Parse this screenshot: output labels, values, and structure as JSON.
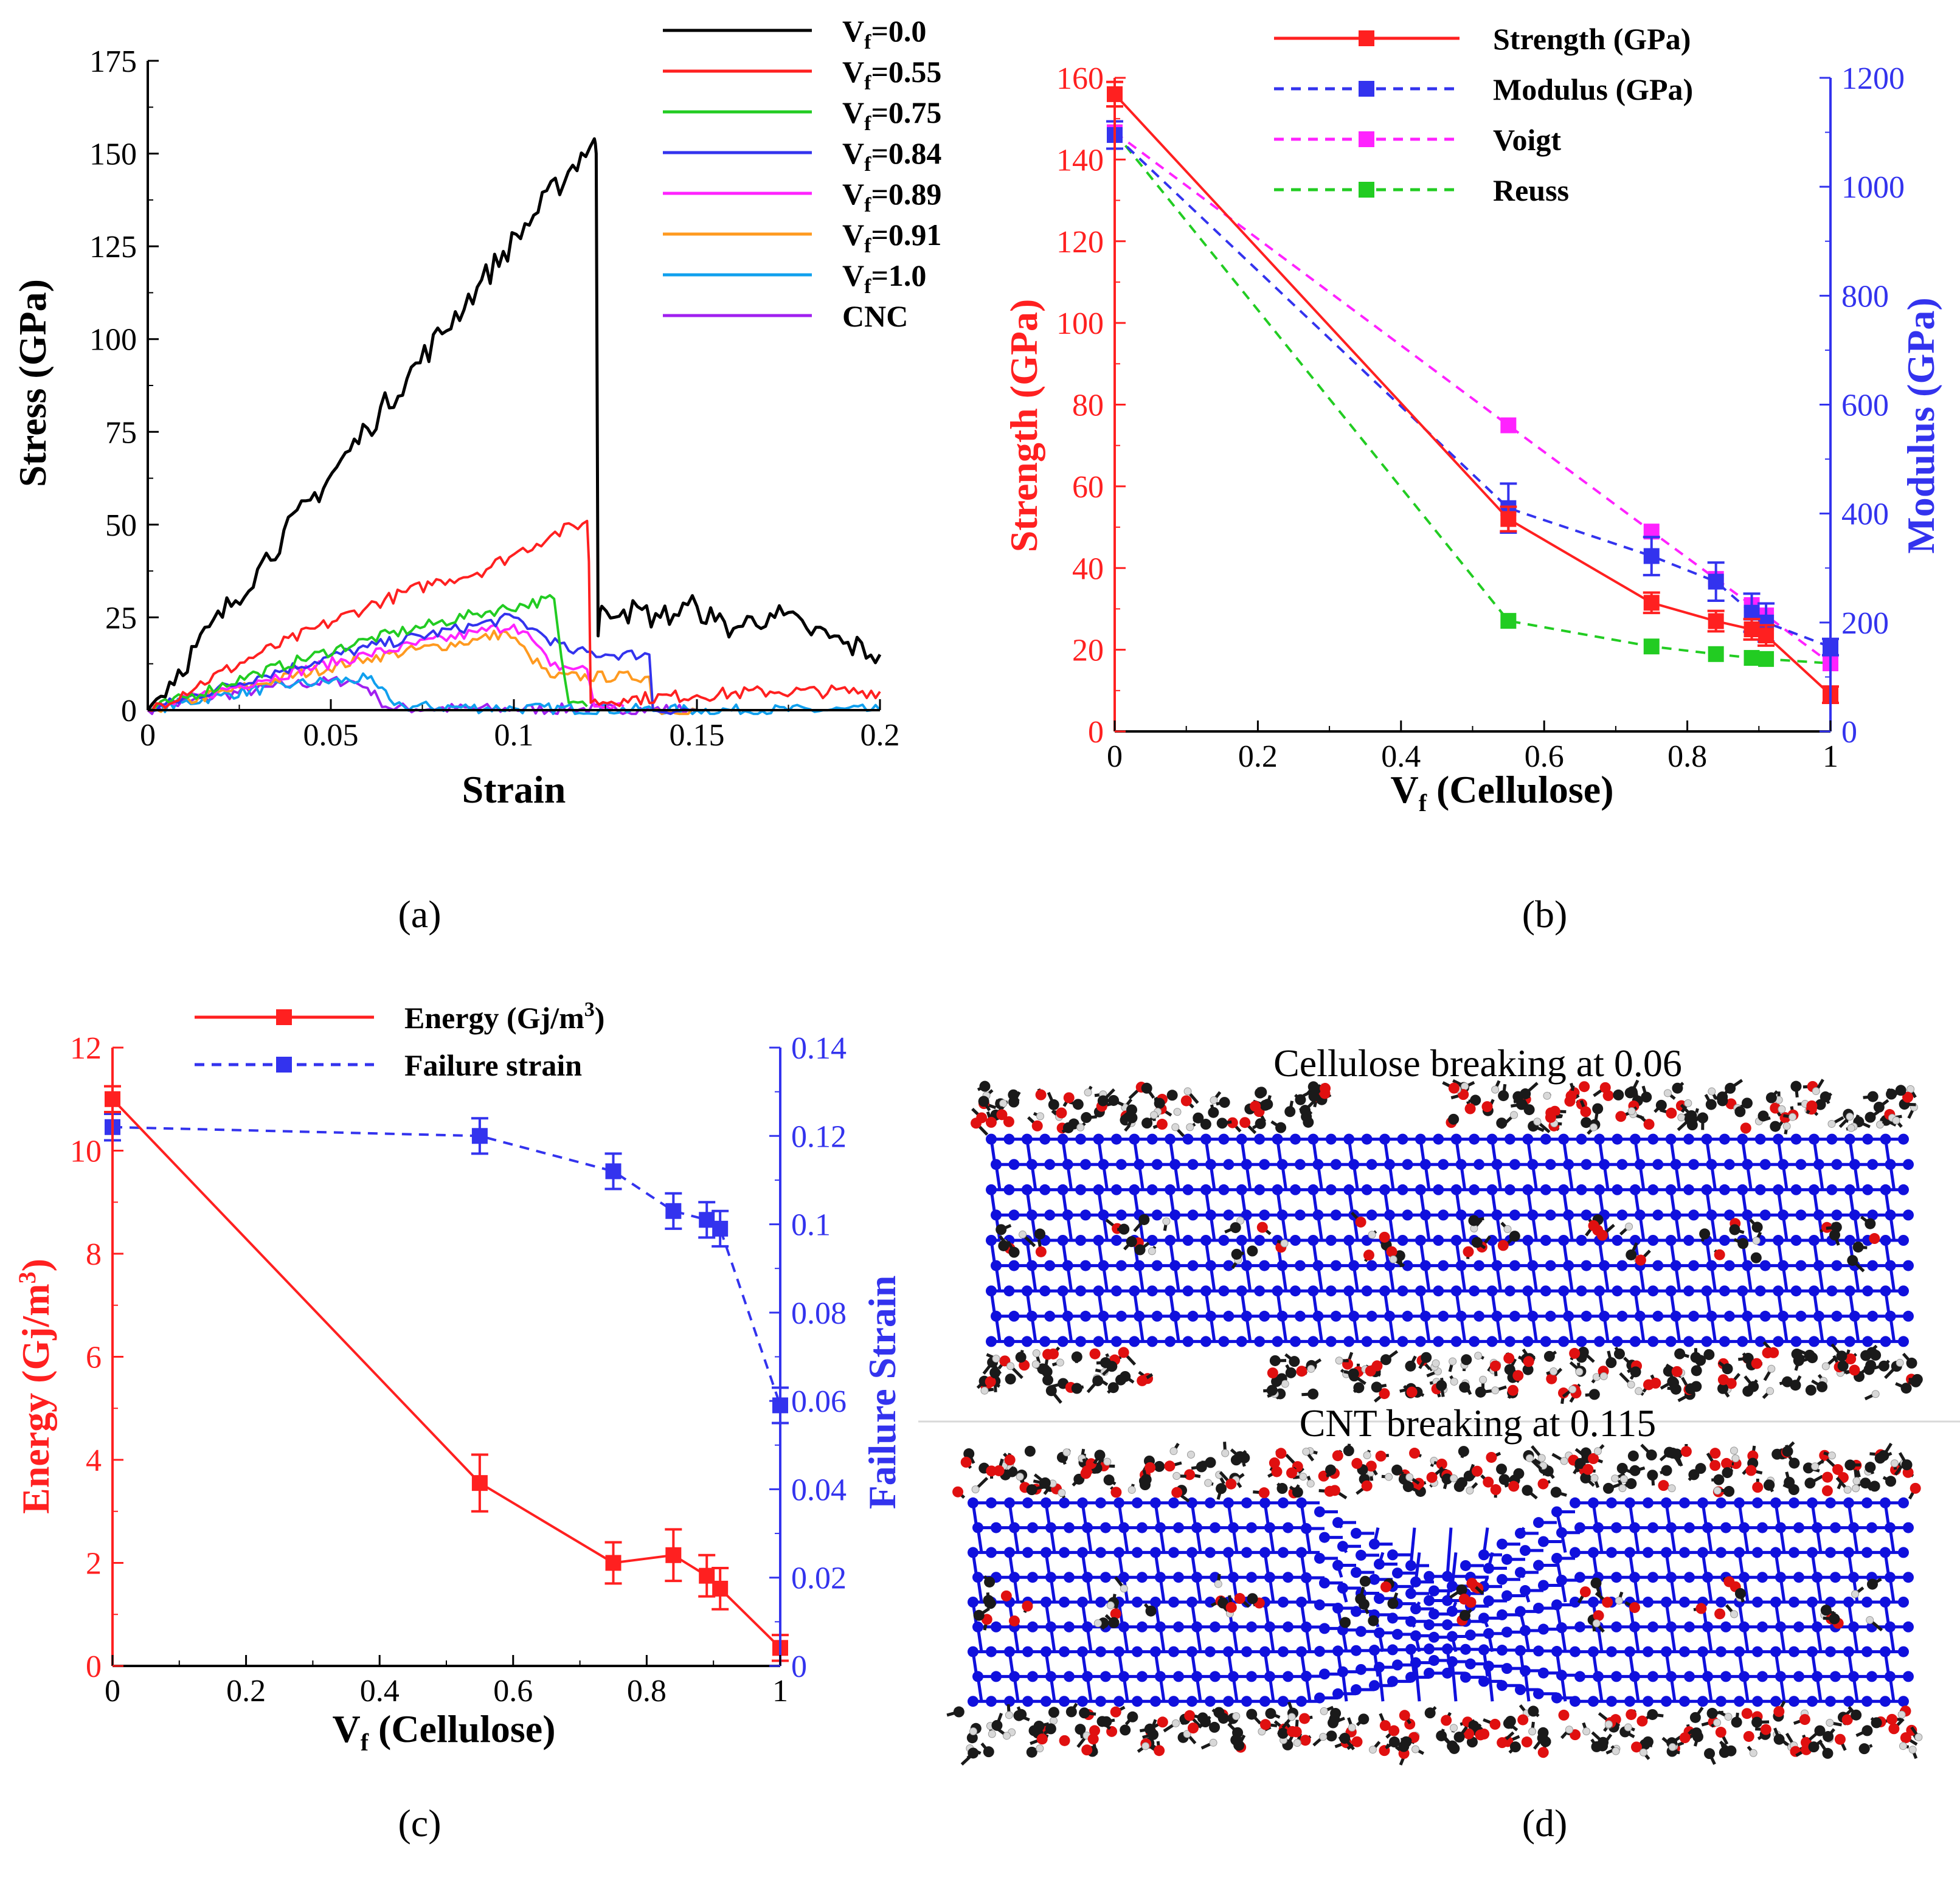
{
  "colors": {
    "black": "#000000",
    "red": "#ff2020",
    "green": "#22cc22",
    "blue": "#3333ee",
    "magenta": "#ff22ff",
    "orange": "#ff9a20",
    "cyan": "#10a0ee",
    "purple": "#a020f0",
    "carbon": "#1a1a1a",
    "oxygen": "#e01010",
    "hydrogen": "#d8d8d8",
    "cnt": "#1010dd",
    "divider": "#d8d8d8"
  },
  "captions": {
    "a": "(a)",
    "b": "(b)",
    "c": "(c)",
    "d": "(d)"
  },
  "chart_data": [
    {
      "id": "a",
      "type": "line",
      "title": "",
      "xlabel": "Strain",
      "ylabel": "Stress (GPa)",
      "xlim": [
        0,
        0.2
      ],
      "ylim": [
        0,
        175
      ],
      "xticks": [
        "0",
        "0.05",
        "0.1",
        "0.15",
        "0.2"
      ],
      "yticks": [
        "0",
        "25",
        "50",
        "75",
        "100",
        "125",
        "150",
        "175"
      ],
      "legend_position": "top-right",
      "series": [
        {
          "name": "Vf=0.0",
          "sub": "f",
          "pre": "V",
          "post": "=0.0",
          "color": "#000000",
          "x": [
            0,
            0.03,
            0.06,
            0.09,
            0.122,
            0.1225,
            0.123,
            0.124,
            0.13,
            0.14,
            0.15,
            0.155,
            0.16,
            0.17,
            0.18,
            0.19,
            0.2
          ],
          "y": [
            0,
            38,
            76,
            114,
            154,
            150,
            20,
            28,
            27,
            25,
            28,
            24,
            22,
            26,
            22,
            18,
            15
          ]
        },
        {
          "name": "Vf=0.55",
          "sub": "f",
          "pre": "V",
          "post": "=0.55",
          "color": "#ff2020",
          "x": [
            0,
            0.03,
            0.06,
            0.08,
            0.09,
            0.1,
            0.11,
            0.12,
            0.1205,
            0.121,
            0.13,
            0.15,
            0.17,
            0.2
          ],
          "y": [
            0,
            15,
            28,
            35,
            37,
            42,
            47,
            51,
            40,
            2,
            3,
            4,
            5,
            5
          ]
        },
        {
          "name": "Vf=0.75",
          "sub": "f",
          "pre": "V",
          "post": "=0.75",
          "color": "#22cc22",
          "x": [
            0,
            0.03,
            0.06,
            0.09,
            0.111,
            0.113,
            0.115,
            0.12
          ],
          "y": [
            0,
            10,
            19,
            26,
            30,
            14,
            2,
            1
          ]
        },
        {
          "name": "Vf=0.84",
          "sub": "f",
          "pre": "V",
          "post": "=0.84",
          "color": "#3333ee",
          "x": [
            0,
            0.03,
            0.06,
            0.09,
            0.1,
            0.105,
            0.115,
            0.125,
            0.137,
            0.138,
            0.15
          ],
          "y": [
            0,
            9,
            17,
            23,
            25,
            22,
            16,
            15,
            15,
            0,
            0
          ]
        },
        {
          "name": "Vf=0.89",
          "sub": "f",
          "pre": "V",
          "post": "=0.89",
          "color": "#ff22ff",
          "x": [
            0,
            0.03,
            0.06,
            0.09,
            0.1,
            0.105,
            0.11,
            0.12,
            0.122,
            0.13
          ],
          "y": [
            0,
            8,
            15,
            21,
            23,
            19,
            12,
            11,
            1,
            1
          ]
        },
        {
          "name": "Vf=0.91",
          "sub": "f",
          "pre": "V",
          "post": "=0.91",
          "color": "#ff9a20",
          "x": [
            0,
            0.03,
            0.06,
            0.09,
            0.098,
            0.104,
            0.11,
            0.137,
            0.138,
            0.15
          ],
          "y": [
            0,
            7,
            14,
            19,
            21,
            15,
            9,
            9,
            0,
            0
          ]
        },
        {
          "name": "Vf=1.0",
          "sub": "f",
          "pre": "V",
          "post": "=1.0",
          "color": "#10a0ee",
          "x": [
            0,
            0.02,
            0.04,
            0.06,
            0.063,
            0.066,
            0.07,
            0.1,
            0.15,
            0.2
          ],
          "y": [
            0,
            4,
            7,
            8.5,
            6,
            3,
            1,
            0.5,
            0,
            0
          ]
        },
        {
          "name": "CNC",
          "sub": "",
          "pre": "CNC",
          "post": "",
          "color": "#a020f0",
          "x": [
            0,
            0.02,
            0.04,
            0.055,
            0.06,
            0.063,
            0.066,
            0.1,
            0.15
          ],
          "y": [
            0,
            4,
            7,
            8,
            6,
            3,
            0.5,
            0.3,
            0.2
          ]
        }
      ]
    },
    {
      "id": "b",
      "type": "line",
      "xlabel_pre": "V",
      "xlabel_sub": "f",
      "xlabel_post": " (Cellulose)",
      "ylabel": "Strength (GPa)",
      "y2label": "Modulus (GPa)",
      "xlim": [
        0,
        1
      ],
      "ylim": [
        0,
        160
      ],
      "y2lim": [
        0,
        1200
      ],
      "xticks": [
        "0",
        "0.2",
        "0.4",
        "0.6",
        "0.8",
        "1"
      ],
      "yticks": [
        "0",
        "20",
        "40",
        "60",
        "80",
        "100",
        "120",
        "140",
        "160"
      ],
      "y2ticks": [
        "0",
        "200",
        "400",
        "600",
        "800",
        "1000",
        "1200"
      ],
      "legend_position": "top-right",
      "series": [
        {
          "name": "Strength (GPa)",
          "axis": "left",
          "color": "#ff2020",
          "dash": "",
          "x": [
            0,
            0.55,
            0.75,
            0.84,
            0.89,
            0.91,
            1.0
          ],
          "y": [
            156,
            52,
            31.5,
            27,
            25,
            23.5,
            9
          ],
          "err": [
            3,
            3,
            2.5,
            2.5,
            2.5,
            2.5,
            2
          ]
        },
        {
          "name": "Modulus (GPa)",
          "axis": "right",
          "color": "#3333ee",
          "dash": "16,12",
          "x": [
            0,
            0.55,
            0.75,
            0.84,
            0.89,
            0.91,
            1.0
          ],
          "y": [
            1095,
            410,
            322,
            275,
            218,
            200,
            155
          ],
          "err": [
            25,
            45,
            35,
            35,
            35,
            35,
            15
          ]
        },
        {
          "name": "Voigt",
          "axis": "right",
          "color": "#ff22ff",
          "dash": "16,12",
          "x": [
            0,
            0.55,
            0.75,
            0.84,
            0.89,
            0.91,
            1.0
          ],
          "y": [
            1100,
            562,
            367,
            280,
            232,
            213,
            125
          ],
          "err": []
        },
        {
          "name": "Reuss",
          "axis": "right",
          "color": "#22cc22",
          "dash": "16,12",
          "x": [
            0,
            0.55,
            0.75,
            0.84,
            0.89,
            0.91,
            1.0
          ],
          "y": [
            1100,
            203,
            156,
            142,
            135,
            133,
            125
          ],
          "err": []
        }
      ]
    },
    {
      "id": "c",
      "type": "line",
      "xlabel_pre": "V",
      "xlabel_sub": "f",
      "xlabel_post": " (Cellulose)",
      "ylabel_pre": "Energy (Gj/m",
      "ylabel_sup": "3",
      "ylabel_post": ")",
      "y2label": "Failure Strain",
      "xlim": [
        0,
        1
      ],
      "ylim": [
        0,
        12
      ],
      "y2lim": [
        0,
        0.14
      ],
      "xticks": [
        "0",
        "0.2",
        "0.4",
        "0.6",
        "0.8",
        "1"
      ],
      "yticks": [
        "0",
        "2",
        "4",
        "6",
        "8",
        "10",
        "12"
      ],
      "y2ticks": [
        "0",
        "0.02",
        "0.04",
        "0.06",
        "0.08",
        "0.1",
        "0.12",
        "0.14"
      ],
      "legend_position": "top-left",
      "series": [
        {
          "name": "Energy (Gj/m3)",
          "leg_pre": "Energy (Gj/m",
          "leg_sup": "3",
          "leg_post": ")",
          "axis": "left",
          "color": "#ff2020",
          "dash": "",
          "x": [
            0,
            0.55,
            0.75,
            0.84,
            0.89,
            0.91,
            1.0
          ],
          "y": [
            11.0,
            3.55,
            2.0,
            2.15,
            1.75,
            1.5,
            0.35
          ],
          "err": [
            0.25,
            0.55,
            0.4,
            0.5,
            0.4,
            0.4,
            0.25
          ]
        },
        {
          "name": "Failure strain",
          "leg_pre": "Failure strain",
          "leg_sup": "",
          "leg_post": "",
          "axis": "right",
          "color": "#3333ee",
          "dash": "16,12",
          "x": [
            0,
            0.55,
            0.75,
            0.84,
            0.89,
            0.91,
            1.0
          ],
          "y": [
            0.122,
            0.12,
            0.112,
            0.103,
            0.101,
            0.099,
            0.059
          ],
          "err": [
            0.003,
            0.004,
            0.004,
            0.004,
            0.004,
            0.004,
            0.004
          ]
        }
      ]
    }
  ],
  "panel_d": {
    "title_top": "Cellulose breaking at 0.06",
    "title_bottom": "CNT breaking at 0.115"
  }
}
